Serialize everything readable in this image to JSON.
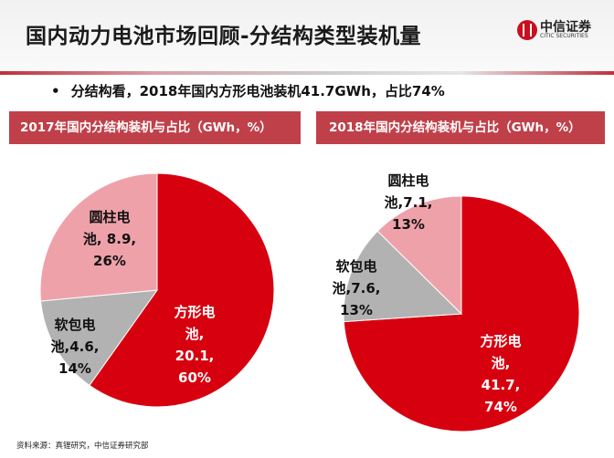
{
  "header": {
    "title": "国内动力电池市场回顾-分结构类型装机量",
    "logo_cn": "中信证券",
    "logo_en": "CITIC SECURITIES"
  },
  "bullet": {
    "marker": "•",
    "text": "分结构看，2018年国内方形电池装机41.7GWh，占比74%"
  },
  "colors": {
    "prismatic": "#d7000f",
    "pouch": "#b2b2b2",
    "cylindrical": "#efa1aa",
    "band": "#c0404a"
  },
  "chart_data": [
    {
      "type": "pie",
      "title": "2017年国内分结构装机与占比（GWh，%）",
      "slices": [
        {
          "name": "方形电池",
          "value": 20.1,
          "percent": 60,
          "label_lines": [
            "方形电",
            "池,",
            "20.1,",
            "60%"
          ]
        },
        {
          "name": "软包电池",
          "value": 4.6,
          "percent": 14,
          "label_lines": [
            "软包电",
            "池,4.6,",
            "14%"
          ]
        },
        {
          "name": "圆柱电池",
          "value": 8.9,
          "percent": 26,
          "label_lines": [
            "圆柱电",
            "池, 8.9,",
            "26%"
          ]
        }
      ]
    },
    {
      "type": "pie",
      "title": "2018年国内分结构装机与占比（GWh，%）",
      "slices": [
        {
          "name": "方形电池",
          "value": 41.7,
          "percent": 74,
          "label_lines": [
            "方形电",
            "池,",
            "41.7,",
            "74%"
          ]
        },
        {
          "name": "软包电池",
          "value": 7.6,
          "percent": 13,
          "label_lines": [
            "软包电",
            "池,7.6,",
            "13%"
          ]
        },
        {
          "name": "圆柱电池",
          "value": 7.1,
          "percent": 13,
          "label_lines": [
            "圆柱电",
            "池,7.1,",
            "13%"
          ]
        }
      ]
    }
  ],
  "footer": {
    "source": "资料来源：真锂研究，中信证券研究部"
  }
}
